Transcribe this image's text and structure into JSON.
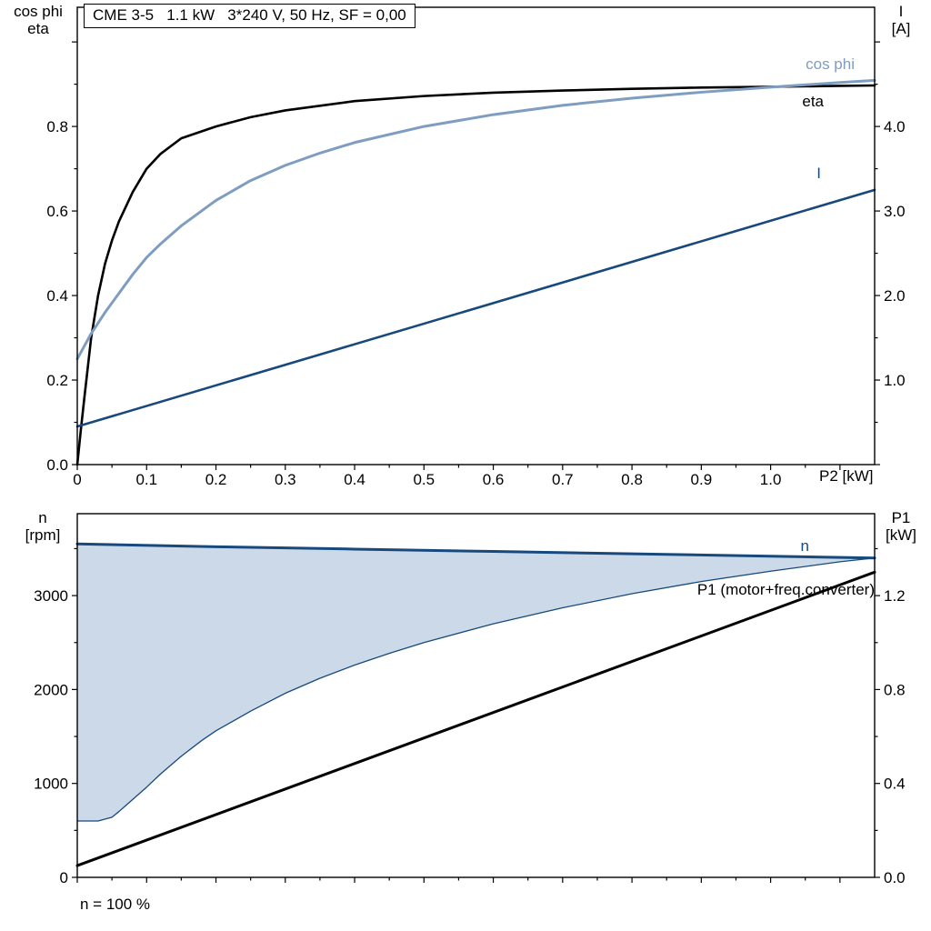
{
  "colors": {
    "navy": "#17497C",
    "steel_blue": "#7E9DC1",
    "black": "#000000",
    "area_fill": "#CCD9E8"
  },
  "chart_data": [
    {
      "type": "line",
      "title": "CME 3-5   1.1 kW   3*240 V, 50 Hz, SF = 0,00",
      "x_axis": {
        "title": "P2 [kW]",
        "min": 0,
        "max": 1.15,
        "ticks": [
          0,
          0.1,
          0.2,
          0.3,
          0.4,
          0.5,
          0.6,
          0.7,
          0.8,
          0.9,
          1.0,
          1.1
        ],
        "minor_ticks": [
          0.05,
          0.15,
          0.25,
          0.35,
          0.45,
          0.55,
          0.65,
          0.75,
          0.85,
          0.95,
          1.05
        ],
        "tick_labels": [
          {
            "v": 0,
            "t": "0"
          },
          {
            "v": 0.1,
            "t": "0.1"
          },
          {
            "v": 0.2,
            "t": "0.2"
          },
          {
            "v": 0.3,
            "t": "0.3"
          },
          {
            "v": 0.4,
            "t": "0.4"
          },
          {
            "v": 0.5,
            "t": "0.5"
          },
          {
            "v": 0.6,
            "t": "0.6"
          },
          {
            "v": 0.7,
            "t": "0.7"
          },
          {
            "v": 0.8,
            "t": "0.8"
          },
          {
            "v": 0.9,
            "t": "0.9"
          },
          {
            "v": 1.0,
            "t": "1.0"
          }
        ]
      },
      "y_left": {
        "title_lines": [
          "cos phi",
          "eta"
        ],
        "min": 0,
        "max": 1.082,
        "ticks": [
          0,
          0.2,
          0.4,
          0.6,
          0.8,
          1.0
        ],
        "minor_ticks": [
          0.1,
          0.3,
          0.5,
          0.7,
          0.9
        ],
        "tick_labels": [
          {
            "v": 0,
            "t": "0.0"
          },
          {
            "v": 0.2,
            "t": "0.2"
          },
          {
            "v": 0.4,
            "t": "0.4"
          },
          {
            "v": 0.6,
            "t": "0.6"
          },
          {
            "v": 0.8,
            "t": "0.8"
          }
        ]
      },
      "y_right": {
        "title_lines": [
          "I",
          "[A]"
        ],
        "min": 0,
        "max": 5.41,
        "ticks": [
          0,
          1,
          2,
          3,
          4,
          5
        ],
        "minor_ticks": [
          0.5,
          1.5,
          2.5,
          3.5,
          4.5
        ],
        "tick_labels": [
          {
            "v": 1,
            "t": "1.0"
          },
          {
            "v": 2,
            "t": "2.0"
          },
          {
            "v": 3,
            "t": "3.0"
          },
          {
            "v": 4,
            "t": "4.0"
          }
        ]
      },
      "series": [
        {
          "id": "eta",
          "label": "eta",
          "axis": "left",
          "color": "#000000",
          "width": 2.6,
          "x": [
            0,
            0.005,
            0.01,
            0.02,
            0.03,
            0.04,
            0.05,
            0.06,
            0.08,
            0.1,
            0.12,
            0.15,
            0.2,
            0.25,
            0.3,
            0.4,
            0.5,
            0.6,
            0.7,
            0.8,
            0.9,
            1.0,
            1.1,
            1.15
          ],
          "y": [
            0,
            0.08,
            0.155,
            0.3,
            0.4,
            0.475,
            0.53,
            0.575,
            0.645,
            0.7,
            0.735,
            0.772,
            0.8,
            0.822,
            0.838,
            0.86,
            0.872,
            0.88,
            0.885,
            0.889,
            0.892,
            0.894,
            0.896,
            0.897
          ]
        },
        {
          "id": "cos-phi",
          "label": "cos phi",
          "axis": "left",
          "color": "#7E9DC1",
          "width": 3,
          "x": [
            0,
            0.01,
            0.02,
            0.04,
            0.06,
            0.08,
            0.1,
            0.12,
            0.15,
            0.2,
            0.25,
            0.3,
            0.35,
            0.4,
            0.5,
            0.6,
            0.7,
            0.8,
            0.9,
            1.0,
            1.1,
            1.15
          ],
          "y": [
            0.25,
            0.28,
            0.31,
            0.36,
            0.405,
            0.45,
            0.49,
            0.522,
            0.565,
            0.625,
            0.672,
            0.708,
            0.737,
            0.762,
            0.8,
            0.828,
            0.85,
            0.867,
            0.881,
            0.893,
            0.904,
            0.909
          ]
        },
        {
          "id": "current",
          "label": "I",
          "axis": "right",
          "color": "#17497C",
          "width": 2.6,
          "x": [
            0,
            1.15
          ],
          "y": [
            0.45,
            3.25
          ]
        }
      ]
    },
    {
      "type": "line",
      "annotation": "n = 100 %",
      "x_axis": {
        "title": "",
        "min": 0,
        "max": 1.15,
        "ticks": [
          0,
          0.1,
          0.2,
          0.3,
          0.4,
          0.5,
          0.6,
          0.7,
          0.8,
          0.9,
          1.0,
          1.1
        ],
        "minor_ticks": [
          0.05,
          0.15,
          0.25,
          0.35,
          0.45,
          0.55,
          0.65,
          0.75,
          0.85,
          0.95,
          1.05
        ],
        "tick_labels": []
      },
      "y_left": {
        "title_lines": [
          "n",
          "[rpm]"
        ],
        "min": 0,
        "max": 3872,
        "ticks": [
          0,
          1000,
          2000,
          3000
        ],
        "minor_ticks": [
          500,
          1500,
          2500,
          3500
        ],
        "tick_labels": [
          {
            "v": 0,
            "t": "0"
          },
          {
            "v": 1000,
            "t": "1000"
          },
          {
            "v": 2000,
            "t": "2000"
          },
          {
            "v": 3000,
            "t": "3000"
          }
        ]
      },
      "y_right": {
        "title_lines": [
          "P1",
          "[kW]"
        ],
        "min": 0,
        "max": 1.549,
        "ticks": [
          0,
          0.4,
          0.8,
          1.2
        ],
        "minor_ticks": [
          0.2,
          0.6,
          1.0,
          1.4
        ],
        "tick_labels": [
          {
            "v": 0,
            "t": "0.0"
          },
          {
            "v": 0.4,
            "t": "0.4"
          },
          {
            "v": 0.8,
            "t": "0.8"
          },
          {
            "v": 1.2,
            "t": "1.2"
          }
        ]
      },
      "series": [
        {
          "id": "n",
          "label": "n",
          "axis": "left",
          "color": "#17497C",
          "width": 3,
          "x": [
            0,
            0.2,
            0.4,
            0.6,
            0.8,
            1.0,
            1.15
          ],
          "y": [
            3550,
            3520,
            3495,
            3470,
            3445,
            3420,
            3400
          ]
        },
        {
          "id": "n-lower-boundary",
          "label": "",
          "axis": "left",
          "color": "#17497C",
          "width": 1.3,
          "fill_between": "n",
          "fill_color": "#CCD9E8",
          "x": [
            0,
            0.03,
            0.05,
            0.06,
            0.08,
            0.1,
            0.12,
            0.15,
            0.18,
            0.2,
            0.25,
            0.3,
            0.35,
            0.4,
            0.45,
            0.5,
            0.6,
            0.7,
            0.8,
            0.9,
            1.0,
            1.1,
            1.15
          ],
          "y": [
            600,
            600,
            640,
            700,
            830,
            960,
            1100,
            1290,
            1460,
            1560,
            1770,
            1960,
            2120,
            2260,
            2385,
            2500,
            2700,
            2870,
            3020,
            3150,
            3260,
            3360,
            3400
          ]
        },
        {
          "id": "p1",
          "label": "P1 (motor+freq.converter)",
          "axis": "right",
          "color": "#000000",
          "width": 3,
          "x": [
            0,
            1.15
          ],
          "y": [
            0.05,
            1.3
          ]
        }
      ]
    }
  ]
}
